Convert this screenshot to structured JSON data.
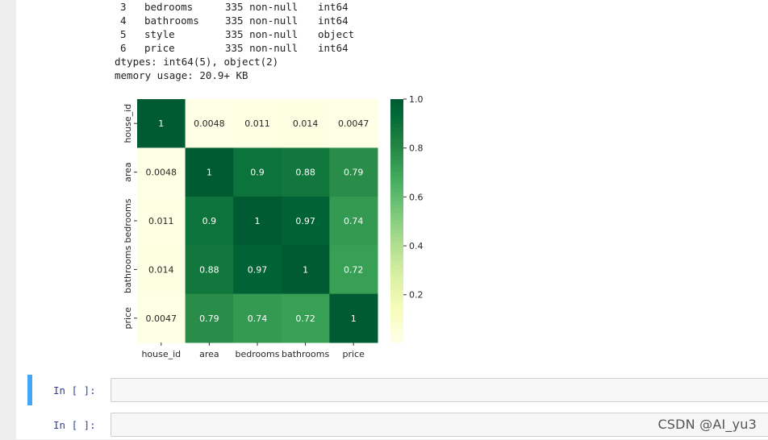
{
  "info_rows": [
    {
      "idx": "3",
      "column": "bedrooms",
      "count": "335 non-null",
      "dtype": "int64"
    },
    {
      "idx": "4",
      "column": "bathrooms",
      "count": "335 non-null",
      "dtype": "int64"
    },
    {
      "idx": "5",
      "column": "style",
      "count": "335 non-null",
      "dtype": "object"
    },
    {
      "idx": "6",
      "column": "price",
      "count": "335 non-null",
      "dtype": "int64"
    }
  ],
  "dtypes_line": "dtypes: int64(5), object(2)",
  "memory_line": "memory usage: 20.9+ KB",
  "chart_data": {
    "type": "heatmap",
    "labels": [
      "house_id",
      "area",
      "bedrooms",
      "bathrooms",
      "price"
    ],
    "matrix": [
      [
        1,
        0.0048,
        0.011,
        0.014,
        0.0047
      ],
      [
        0.0048,
        1,
        0.9,
        0.88,
        0.79
      ],
      [
        0.011,
        0.9,
        1,
        0.97,
        0.74
      ],
      [
        0.014,
        0.88,
        0.97,
        1,
        0.72
      ],
      [
        0.0047,
        0.79,
        0.74,
        0.72,
        1
      ]
    ],
    "annotations": [
      [
        "1",
        "0.0048",
        "0.011",
        "0.014",
        "0.0047"
      ],
      [
        "0.0048",
        "1",
        "0.9",
        "0.88",
        "0.79"
      ],
      [
        "0.011",
        "0.9",
        "1",
        "0.97",
        "0.74"
      ],
      [
        "0.014",
        "0.88",
        "0.97",
        "1",
        "0.72"
      ],
      [
        "0.0047",
        "0.79",
        "0.74",
        "0.72",
        "1"
      ]
    ],
    "colormap": "YlGn",
    "colorbar": {
      "ticks": [
        0.2,
        0.4,
        0.6,
        0.8,
        1.0
      ],
      "tick_labels": [
        "0.2",
        "0.4",
        "0.6",
        "0.8",
        "1.0"
      ],
      "range": [
        0.0047,
        1.0
      ]
    }
  },
  "cells": [
    {
      "prompt": "In  [  ]:",
      "selected": true
    },
    {
      "prompt": "In  [  ]:",
      "selected": false
    }
  ],
  "watermark": "CSDN @AI_yu3",
  "colors": {
    "selected_bar": "#42a5f5",
    "prompt": "#303f9f"
  }
}
